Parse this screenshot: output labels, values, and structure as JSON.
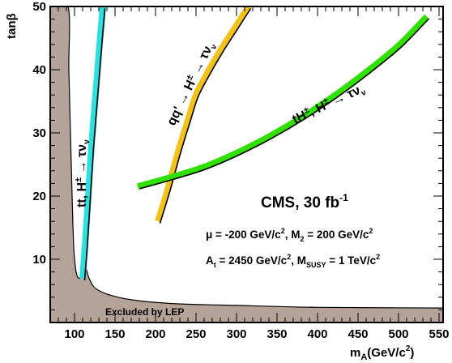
{
  "chart_data": {
    "type": "line",
    "xlabel_main": "m",
    "xlabel_sub": "A",
    "xlabel_unit": "(GeV/c",
    "xlabel_sup": "2",
    "xlabel_close": ")",
    "ylabel": "tanβ",
    "xlim": [
      70,
      555
    ],
    "ylim": [
      0,
      50
    ],
    "xticks": [
      100,
      150,
      200,
      250,
      300,
      350,
      400,
      450,
      500,
      550
    ],
    "yticks": [
      10,
      20,
      30,
      40,
      50
    ],
    "grid": false,
    "excluded_region": {
      "label": "Excluded by LEP",
      "color": "#b5a39a",
      "boundary": [
        [
          70,
          50
        ],
        [
          92,
          50
        ],
        [
          93,
          40
        ],
        [
          95,
          30
        ],
        [
          97,
          20
        ],
        [
          99,
          12
        ],
        [
          102,
          8
        ],
        [
          106,
          7
        ],
        [
          110,
          8.5
        ],
        [
          113,
          9
        ],
        [
          118,
          7
        ],
        [
          125,
          5.5
        ],
        [
          140,
          4.5
        ],
        [
          170,
          3.6
        ],
        [
          220,
          3.0
        ],
        [
          300,
          2.7
        ],
        [
          400,
          2.4
        ],
        [
          555,
          2.3
        ]
      ]
    },
    "series": [
      {
        "name": "tt, H± → τν",
        "color": "#2de0e0",
        "lead": "tt, H",
        "sup": "±",
        "arrow": " → τν",
        "sub": "ν",
        "points": [
          [
            110,
            7
          ],
          [
            113,
            12
          ],
          [
            117,
            20
          ],
          [
            121,
            28
          ],
          [
            126,
            36
          ],
          [
            131,
            44
          ],
          [
            135,
            50
          ]
        ]
      },
      {
        "name": "qq' → H± → τν",
        "color": "#f2c21b",
        "lead": "qq",
        "prime": "'",
        "arrow1": " → H",
        "sup": "±",
        "arrow": " → τν",
        "sub": "ν",
        "points": [
          [
            203,
            16
          ],
          [
            215,
            21
          ],
          [
            228,
            27
          ],
          [
            240,
            32
          ],
          [
            250,
            36
          ],
          [
            262,
            39
          ],
          [
            280,
            43
          ],
          [
            300,
            47
          ],
          [
            315,
            50
          ]
        ]
      },
      {
        "name": "tH±, H± → τν",
        "color": "#2fe000",
        "lead": "tH",
        "sup": "±",
        "mid": ", H",
        "sup2": "±",
        "arrow": " → τν",
        "sub": "ν",
        "points": [
          [
            178,
            21.5
          ],
          [
            220,
            23
          ],
          [
            260,
            24.6
          ],
          [
            300,
            26.8
          ],
          [
            340,
            29.4
          ],
          [
            380,
            32.4
          ],
          [
            420,
            35.8
          ],
          [
            460,
            39.6
          ],
          [
            500,
            43.8
          ],
          [
            535,
            48.4
          ]
        ]
      }
    ],
    "annotations": {
      "title": "CMS, 30 fb",
      "title_sup": "-1",
      "line1_a": "μ = -200 GeV/c",
      "line1_sup": "2",
      "line1_b": ", M",
      "line1_sub": "2",
      "line1_c": " = 200 GeV/c",
      "line1_sup2": "2",
      "line2_a": "A",
      "line2_sub": "t",
      "line2_b": " = 2450 GeV/c",
      "line2_sup": "2",
      "line2_c": ", M",
      "line2_sub2": "SUSY",
      "line2_d": " = 1 TeV/c",
      "line2_sup2": "2"
    }
  }
}
